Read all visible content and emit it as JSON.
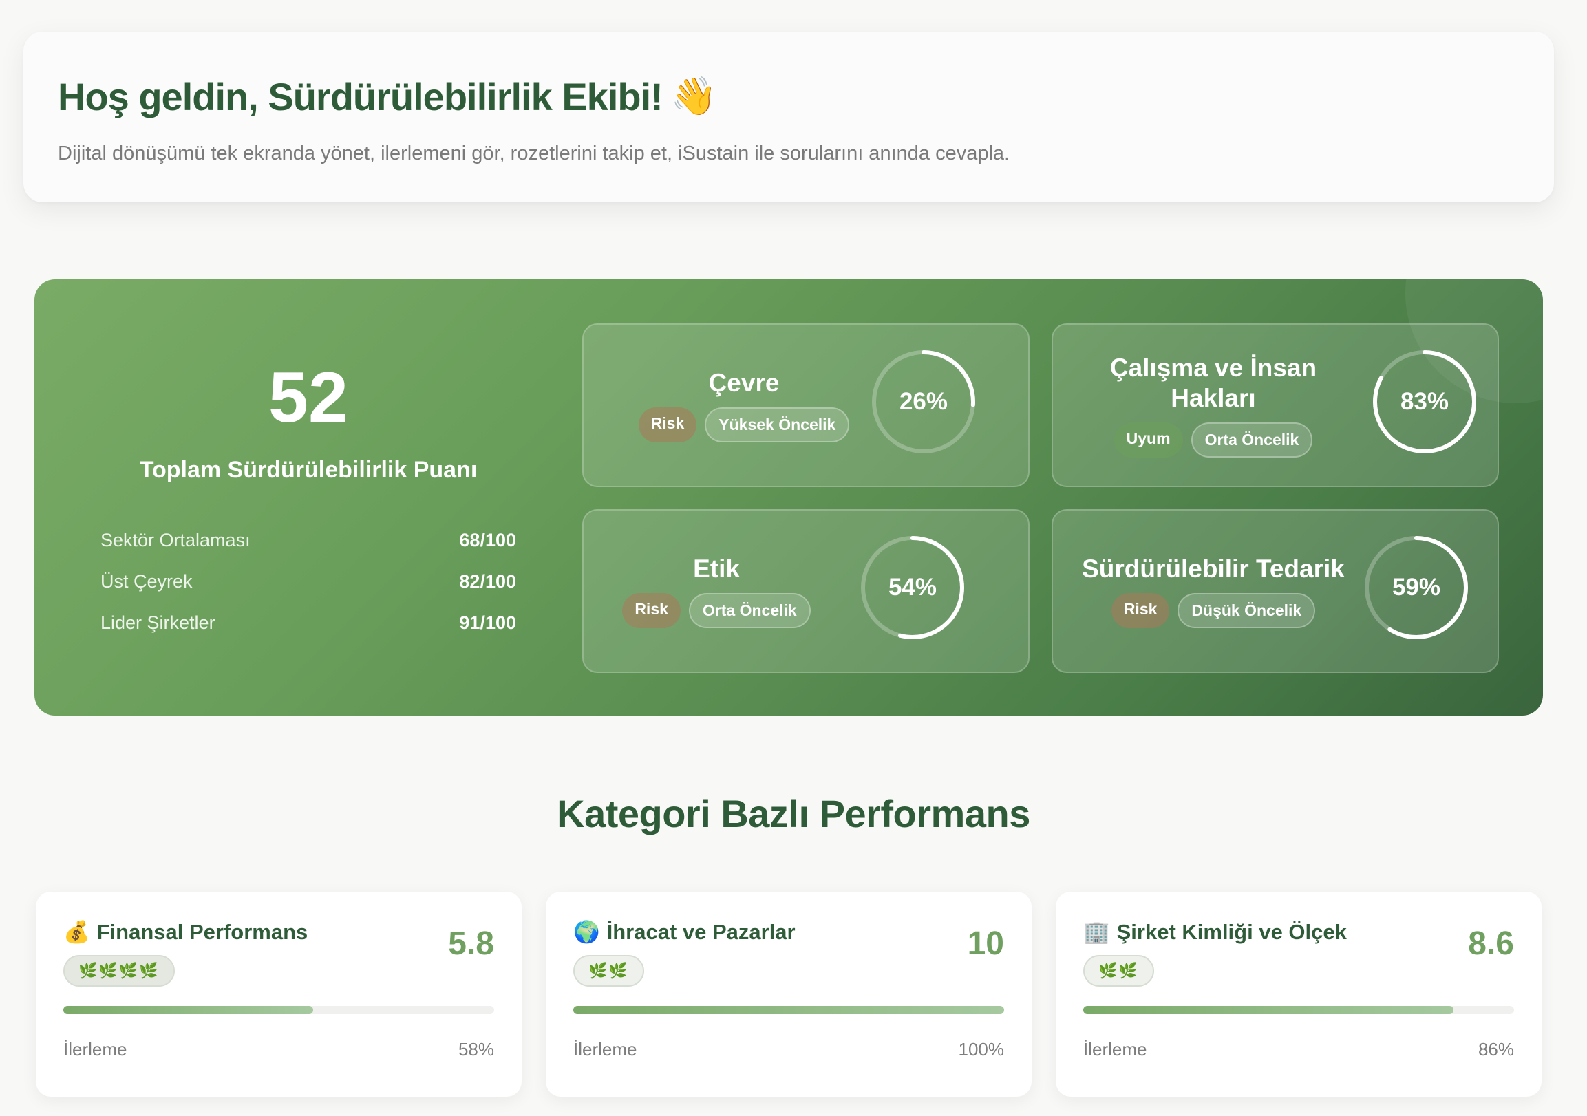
{
  "welcome": {
    "title": "Hoş geldin, Sürdürülebilirlik Ekibi!",
    "wave": "👋",
    "subtitle": "Dijital dönüşümü tek ekranda yönet, ilerlemeni gör, rozetlerini takip et, iSustain ile sorularını anında cevapla."
  },
  "score": {
    "value": "52",
    "label": "Toplam Sürdürülebilirlik Puanı",
    "benchmarks": [
      {
        "label": "Sektör Ortalaması",
        "value": "68/100"
      },
      {
        "label": "Üst Çeyrek",
        "value": "82/100"
      },
      {
        "label": "Lider Şirketler",
        "value": "91/100"
      }
    ]
  },
  "categories": [
    {
      "title": "Çevre",
      "status": "Risk",
      "priority": "Yüksek Öncelik",
      "percent": 26,
      "percent_label": "26%"
    },
    {
      "title": "Çalışma ve İnsan Hakları",
      "status": "Uyum",
      "priority": "Orta Öncelik",
      "percent": 83,
      "percent_label": "83%"
    },
    {
      "title": "Etik",
      "status": "Risk",
      "priority": "Orta Öncelik",
      "percent": 54,
      "percent_label": "54%"
    },
    {
      "title": "Sürdürülebilir Tedarik",
      "status": "Risk",
      "priority": "Düşük Öncelik",
      "percent": 59,
      "percent_label": "59%"
    }
  ],
  "section_title": "Kategori Bazlı Performans",
  "performance": [
    {
      "icon": "💰",
      "title": "Finansal Performans",
      "value": "5.8",
      "leaves": "🌿🌿🌿🌿",
      "progress_label": "İlerleme",
      "progress": 58,
      "progress_text": "58%"
    },
    {
      "icon": "🌍",
      "title": "İhracat ve Pazarlar",
      "value": "10",
      "leaves": "🌿🌿",
      "progress_label": "İlerleme",
      "progress": 100,
      "progress_text": "100%"
    },
    {
      "icon": "🏢",
      "title": "Şirket Kimliği ve Ölçek",
      "value": "8.6",
      "leaves": "🌿🌿",
      "progress_label": "İlerleme",
      "progress": 86,
      "progress_text": "86%"
    }
  ]
}
